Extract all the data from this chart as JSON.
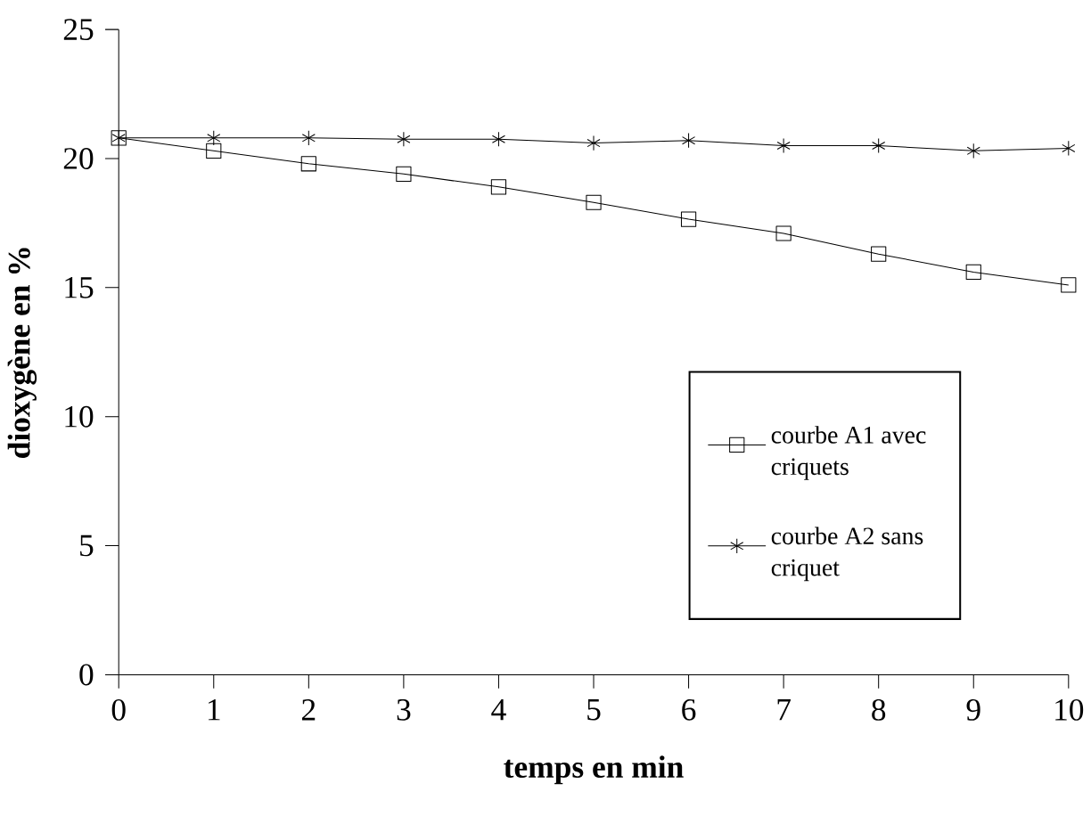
{
  "chart_data": {
    "type": "line",
    "xlabel": "temps en min",
    "ylabel": "dioxygène en %",
    "x": [
      0,
      1,
      2,
      3,
      4,
      5,
      6,
      7,
      8,
      9,
      10
    ],
    "series": [
      {
        "name": "courbe A1 avec criquets",
        "color": "#000000",
        "marker": "square",
        "values": [
          20.8,
          20.3,
          19.8,
          19.4,
          18.9,
          18.3,
          17.65,
          17.1,
          16.3,
          15.6,
          15.1
        ]
      },
      {
        "name": "courbe A2 sans criquet",
        "color": "#000000",
        "marker": "cross",
        "values": [
          20.8,
          20.8,
          20.8,
          20.75,
          20.75,
          20.6,
          20.7,
          20.5,
          20.5,
          20.3,
          20.4
        ]
      }
    ],
    "xlim": [
      0,
      10
    ],
    "ylim": [
      0,
      25
    ],
    "xticks": [
      0,
      1,
      2,
      3,
      4,
      5,
      6,
      7,
      8,
      9,
      10
    ],
    "yticks": [
      0,
      5,
      10,
      15,
      20,
      25
    ],
    "grid": false,
    "legend": "right",
    "line_style": "solid"
  }
}
